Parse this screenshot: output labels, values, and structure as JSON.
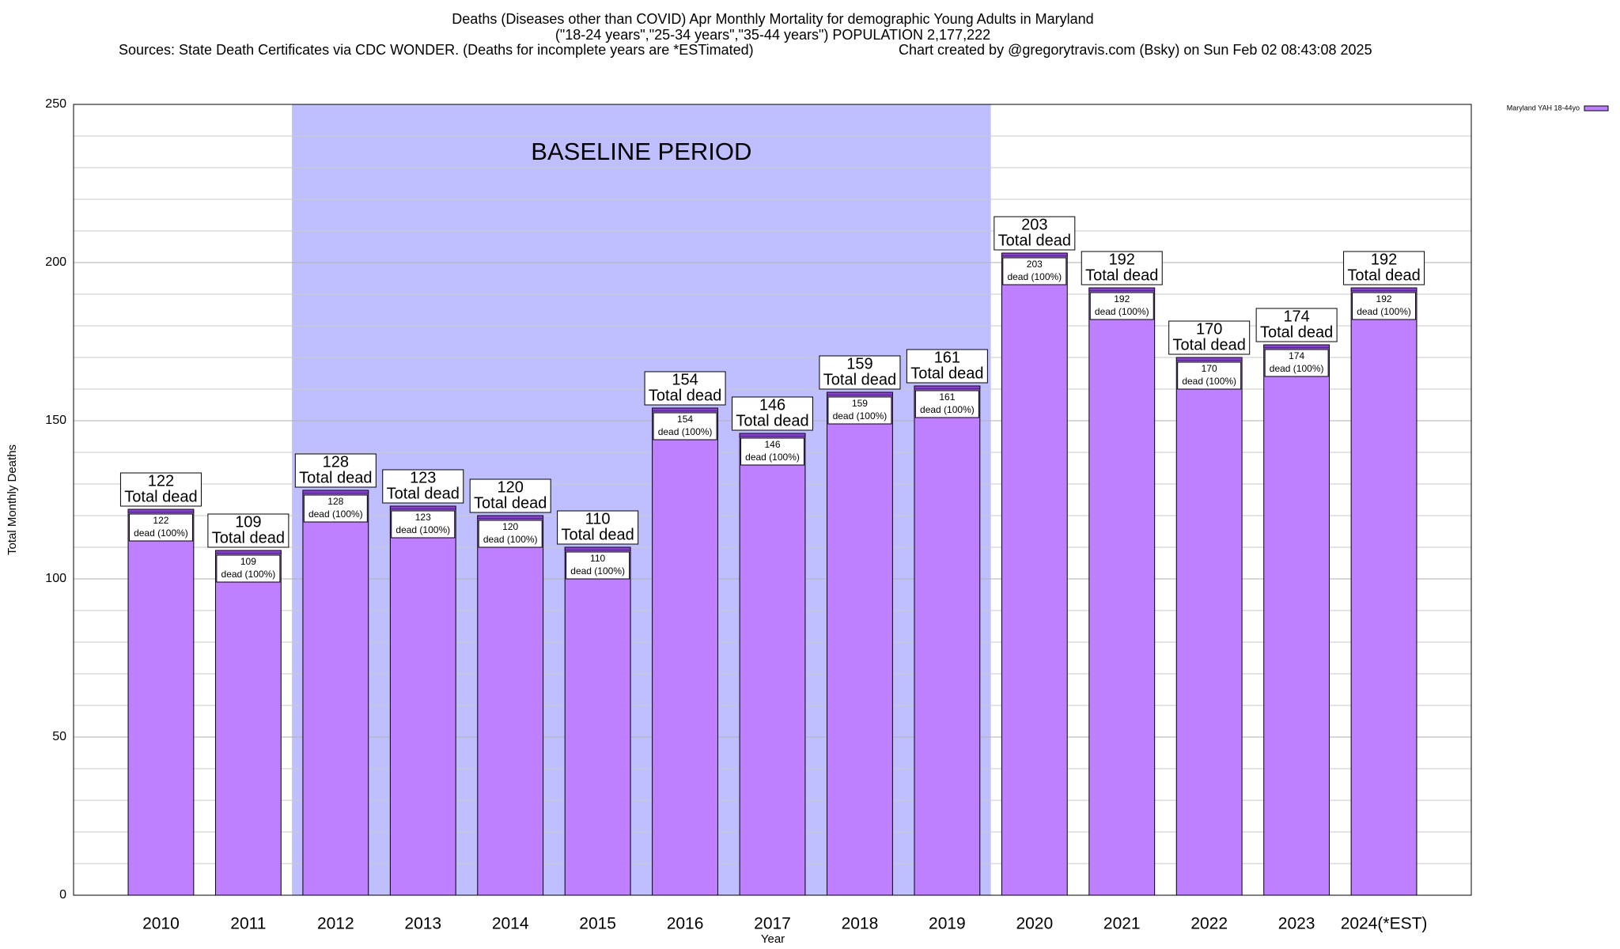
{
  "chart_data": {
    "type": "bar",
    "title": "Deaths (Diseases other than COVID) Apr Monthly Mortality for demographic Young Adults in Maryland",
    "subtitle": "(\"18-24 years\",\"25-34 years\",\"35-44 years\") POPULATION 2,177,222",
    "sources": "Sources: State Death Certificates via CDC WONDER. (Deaths for incomplete years are *ESTimated)",
    "credit": "Chart created by @gregorytravis.com (Bsky) on Sun Feb 02 08:43:08 2025",
    "x_label": "Year",
    "y_label": "Total Monthly Deaths",
    "categories": [
      "2010",
      "2011",
      "2012",
      "2013",
      "2014",
      "2015",
      "2016",
      "2017",
      "2018",
      "2019",
      "2020",
      "2021",
      "2022",
      "2023",
      "2024(*EST)"
    ],
    "series": [
      {
        "name": "Maryland YAH 18-44yo",
        "color": "#bf80ff",
        "values": [
          122,
          109,
          128,
          123,
          120,
          110,
          154,
          146,
          159,
          161,
          203,
          192,
          170,
          174,
          192
        ]
      }
    ],
    "total_label": "Total dead",
    "share_label": "dead (100%)",
    "baseline": {
      "label": "BASELINE PERIOD",
      "start": "2012",
      "end": "2019",
      "color": "#bfbfff"
    },
    "ylim": [
      0,
      250
    ],
    "yticks": [
      0,
      50,
      100,
      150,
      200,
      250
    ],
    "minor_yticks": [
      10,
      20,
      30,
      40,
      60,
      70,
      80,
      90,
      110,
      120,
      130,
      140,
      160,
      170,
      180,
      190,
      210,
      220,
      230,
      240
    ],
    "grid": true,
    "legend": "top-right"
  }
}
